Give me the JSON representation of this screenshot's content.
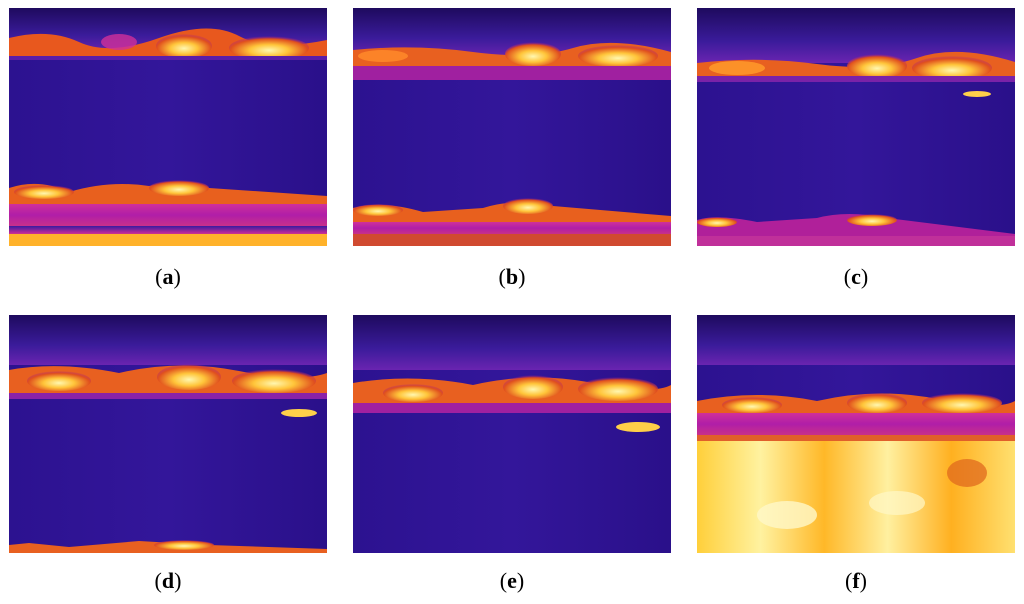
{
  "figure": {
    "panels": [
      {
        "label": "a"
      },
      {
        "label": "b"
      },
      {
        "label": "c"
      },
      {
        "label": "d"
      },
      {
        "label": "e"
      },
      {
        "label": "f"
      }
    ]
  },
  "colors": {
    "cold": "#2a0f86",
    "cool": "#3b1ca0",
    "warm": "#b21ea8",
    "hot": "#ff7a1a",
    "hottest": "#fff06a"
  }
}
